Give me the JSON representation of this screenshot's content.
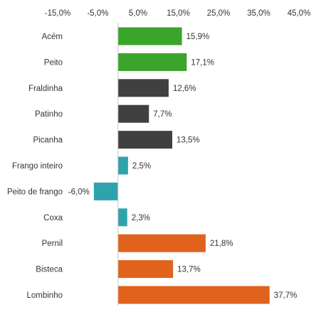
{
  "chart_data": {
    "type": "bar",
    "orientation": "horizontal",
    "title": "",
    "xlabel": "",
    "ylabel": "",
    "xlim": [
      -15,
      45
    ],
    "x_ticks": [
      -15,
      -5,
      5,
      15,
      25,
      35,
      45
    ],
    "x_tick_labels": [
      "-15,0%",
      "-5,0%",
      "5,0%",
      "15,0%",
      "25,0%",
      "35,0%",
      "45,0%"
    ],
    "x_axis_position": "top",
    "grid": false,
    "categories": [
      "Acém",
      "Peito",
      "Fraldinha",
      "Patinho",
      "Picanha",
      "Frango inteiro",
      "Peito de frango",
      "Coxa",
      "Pernil",
      "Bisteca",
      "Lombinho"
    ],
    "values": [
      15.9,
      17.1,
      12.6,
      7.7,
      13.5,
      2.5,
      -6.0,
      2.3,
      21.8,
      13.7,
      37.7
    ],
    "value_labels": [
      "15,9%",
      "17,1%",
      "12,6%",
      "7,7%",
      "13,5%",
      "2,5%",
      "-6,0%",
      "2,3%",
      "21,8%",
      "13,7%",
      "37,7%"
    ],
    "bar_colors": [
      "#3ba42a",
      "#3ba42a",
      "#404040",
      "#404040",
      "#404040",
      "#2fa3ac",
      "#2fa3ac",
      "#2fa3ac",
      "#e0621c",
      "#e0621c",
      "#e0621c"
    ]
  }
}
